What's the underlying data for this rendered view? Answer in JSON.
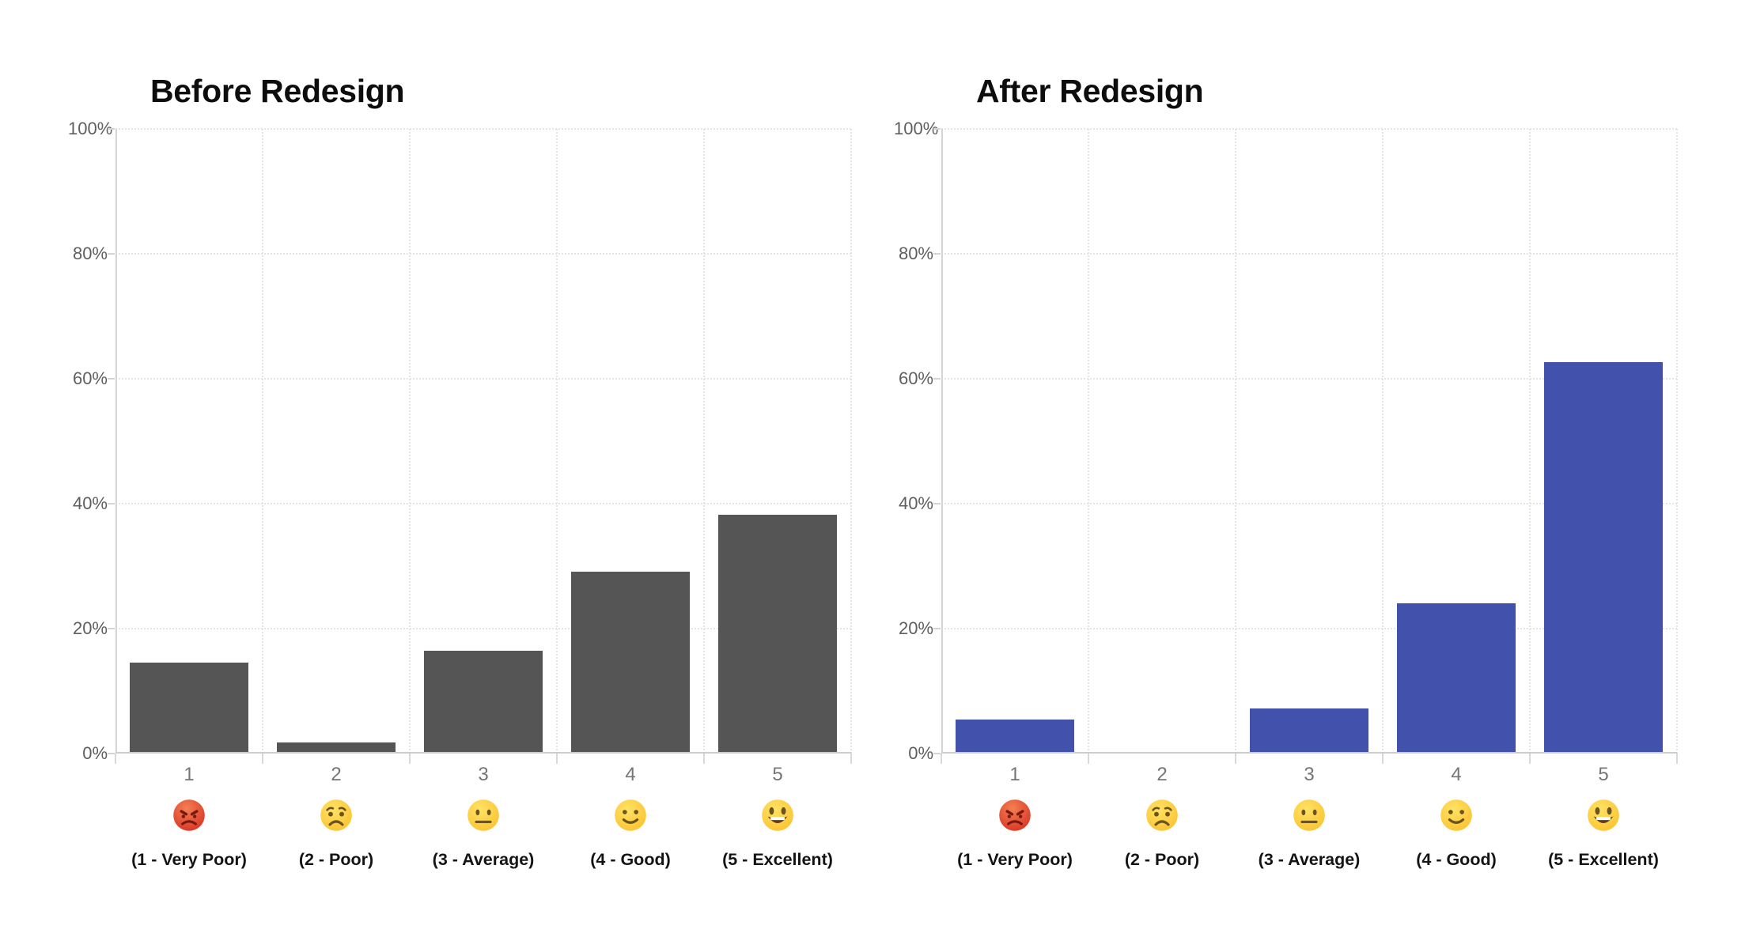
{
  "chart_data": [
    {
      "type": "bar",
      "title": "Before Redesign",
      "categories": [
        "1",
        "2",
        "3",
        "4",
        "5"
      ],
      "values": [
        14.6,
        1.8,
        16.4,
        29.1,
        38.2
      ],
      "value_unit": "percent",
      "bar_color": "#555555",
      "xlabel": "",
      "ylabel": "",
      "ylim": [
        0,
        100
      ],
      "y_ticks": [
        "0%",
        "20%",
        "40%",
        "60%",
        "80%",
        "100%"
      ],
      "grid": "dotted",
      "legend": "none"
    },
    {
      "type": "bar",
      "title": "After Redesign",
      "categories": [
        "1",
        "2",
        "3",
        "4",
        "5"
      ],
      "values": [
        5.4,
        0,
        7.2,
        24.1,
        62.7
      ],
      "value_unit": "percent",
      "bar_color": "#4252AC",
      "xlabel": "",
      "ylabel": "",
      "ylim": [
        0,
        100
      ],
      "y_ticks": [
        "0%",
        "20%",
        "40%",
        "60%",
        "80%",
        "100%"
      ],
      "grid": "dotted",
      "legend": "none"
    }
  ],
  "rating_legend": {
    "items": [
      {
        "value": "1",
        "emoji": "😡",
        "emoji_name": "angry-red-face-emoji",
        "label": "(1 - Very Poor)"
      },
      {
        "value": "2",
        "emoji": "😟",
        "emoji_name": "worried-face-emoji",
        "label": "(2 - Poor)"
      },
      {
        "value": "3",
        "emoji": "😐",
        "emoji_name": "neutral-face-emoji",
        "label": "(3 - Average)"
      },
      {
        "value": "4",
        "emoji": "🙂",
        "emoji_name": "slightly-smiling-face-emoji",
        "label": "(4 - Good)"
      },
      {
        "value": "5",
        "emoji": "😃",
        "emoji_name": "grinning-face-emoji",
        "label": "(5 - Excellent)"
      }
    ]
  },
  "colors": {
    "background": "#ffffff",
    "before_bar": "#555555",
    "after_bar": "#4252AC",
    "gridline": "#e4e4e4",
    "axis_line": "#d4d4d4",
    "y_tick_label": "#5f5f5f",
    "category_label": "#757575",
    "footer_label": "#141414",
    "title": "#0d0d0d"
  }
}
